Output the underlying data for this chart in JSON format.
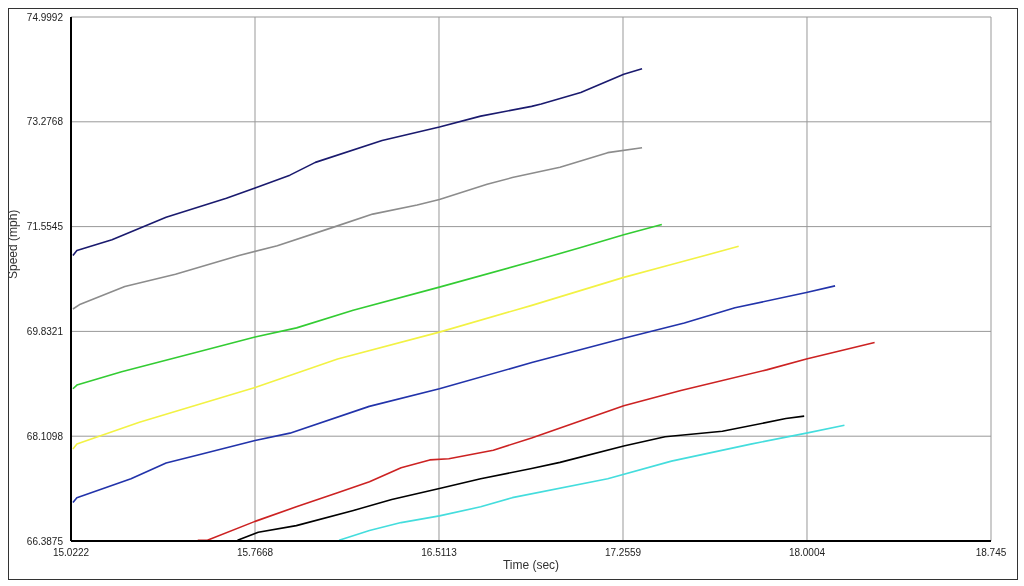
{
  "chart_data": {
    "type": "line",
    "xlabel": "Time (sec)",
    "ylabel": "Speed (mph)",
    "xlim": [
      15.0222,
      18.745
    ],
    "xticks": [
      15.0222,
      15.7668,
      16.5113,
      17.2559,
      18.0004,
      18.745
    ],
    "ylim": [
      66.3875,
      74.9992
    ],
    "yticks": [
      66.3875,
      68.1098,
      69.8321,
      71.5545,
      73.2768,
      74.9992
    ],
    "grid": true,
    "series": [
      {
        "color": "#1a1a6e",
        "x": [
          15.03,
          15.046,
          15.188,
          15.407,
          15.651,
          15.767,
          15.908,
          16.011,
          16.281,
          16.513,
          16.68,
          16.886,
          16.925,
          17.085,
          17.259,
          17.333
        ],
        "values": [
          71.08,
          71.16,
          71.34,
          71.71,
          72.02,
          72.19,
          72.4,
          72.61,
          72.97,
          73.19,
          73.37,
          73.53,
          73.57,
          73.76,
          74.06,
          74.15
        ]
      },
      {
        "color": "#8c8c8c",
        "x": [
          15.03,
          15.06,
          15.24,
          15.445,
          15.702,
          15.857,
          16.088,
          16.243,
          16.423,
          16.513,
          16.706,
          16.808,
          17.001,
          17.194,
          17.333
        ],
        "values": [
          70.2,
          70.28,
          70.57,
          70.77,
          71.08,
          71.24,
          71.55,
          71.76,
          71.91,
          72.0,
          72.25,
          72.36,
          72.53,
          72.77,
          72.85
        ]
      },
      {
        "color": "#33cc33",
        "x": [
          15.03,
          15.046,
          15.227,
          15.523,
          15.767,
          15.935,
          16.164,
          16.513,
          16.887,
          17.085,
          17.259,
          17.413
        ],
        "values": [
          68.89,
          68.95,
          69.17,
          69.48,
          69.74,
          69.89,
          70.18,
          70.56,
          70.98,
          71.21,
          71.42,
          71.59
        ]
      },
      {
        "color": "#f2f244",
        "x": [
          15.03,
          15.046,
          15.299,
          15.659,
          15.767,
          16.101,
          16.513,
          16.887,
          17.259,
          17.452,
          17.724
        ],
        "values": [
          67.9,
          67.98,
          68.34,
          68.78,
          68.91,
          69.38,
          69.82,
          70.26,
          70.72,
          70.93,
          71.23
        ]
      },
      {
        "color": "#2233aa",
        "x": [
          15.03,
          15.046,
          15.265,
          15.407,
          15.536,
          15.767,
          15.908,
          16.229,
          16.513,
          16.887,
          17.259,
          17.504,
          17.709,
          17.998,
          18.114
        ],
        "values": [
          67.02,
          67.1,
          67.41,
          67.67,
          67.8,
          68.04,
          68.16,
          68.6,
          68.89,
          69.32,
          69.72,
          69.97,
          70.22,
          70.47,
          70.58
        ]
      },
      {
        "color": "#cc2222",
        "x": [
          15.535,
          15.574,
          15.767,
          15.934,
          16.101,
          16.23,
          16.358,
          16.474,
          16.551,
          16.731,
          16.886,
          17.259,
          17.49,
          17.837,
          17.998,
          18.274
        ],
        "values": [
          66.4,
          66.4,
          66.71,
          66.95,
          67.18,
          67.36,
          67.59,
          67.72,
          67.74,
          67.88,
          68.08,
          68.61,
          68.86,
          69.2,
          69.38,
          69.65
        ]
      },
      {
        "color": "#000000",
        "x": [
          15.696,
          15.78,
          15.934,
          16.165,
          16.32,
          16.513,
          16.68,
          16.886,
          17.001,
          17.259,
          17.426,
          17.658,
          17.915,
          17.989
        ],
        "values": [
          66.4,
          66.53,
          66.64,
          66.89,
          67.07,
          67.25,
          67.41,
          67.58,
          67.68,
          67.95,
          68.1,
          68.19,
          68.4,
          68.44
        ]
      },
      {
        "color": "#44dddd",
        "x": [
          16.107,
          16.23,
          16.358,
          16.513,
          16.68,
          16.808,
          17.194,
          17.452,
          17.773,
          17.998,
          18.152
        ],
        "values": [
          66.4,
          66.56,
          66.69,
          66.8,
          66.95,
          67.1,
          67.41,
          67.7,
          67.98,
          68.16,
          68.29
        ]
      }
    ]
  }
}
